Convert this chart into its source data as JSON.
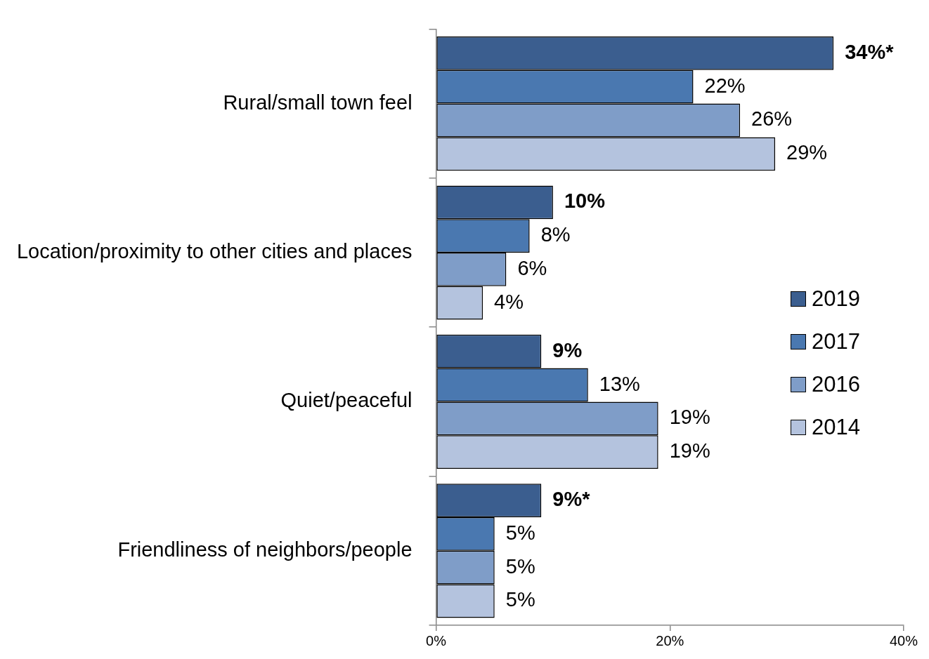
{
  "chart_data": {
    "type": "bar",
    "orientation": "horizontal",
    "categories": [
      "Rural/small town feel",
      "Location/proximity to other cities and places",
      "Quiet/peaceful",
      "Friendliness of neighbors/people"
    ],
    "series": [
      {
        "name": "2019",
        "color": "#3b5e8f",
        "values": [
          34,
          10,
          9,
          9
        ],
        "value_labels": [
          "34%*",
          "10%",
          "9%",
          "9%*"
        ]
      },
      {
        "name": "2017",
        "color": "#4a78b0",
        "values": [
          22,
          8,
          13,
          5
        ],
        "value_labels": [
          "22%",
          "8%",
          "13%",
          "5%"
        ]
      },
      {
        "name": "2016",
        "color": "#7f9dc8",
        "values": [
          26,
          6,
          19,
          5
        ],
        "value_labels": [
          "26%",
          "6%",
          "19%",
          "5%"
        ]
      },
      {
        "name": "2014",
        "color": "#b4c3de",
        "values": [
          29,
          4,
          19,
          5
        ],
        "value_labels": [
          "29%",
          "4%",
          "19%",
          "5%"
        ]
      }
    ],
    "xlim": [
      0,
      40
    ],
    "xticks": [
      {
        "value": 0,
        "label": "0%"
      },
      {
        "value": 20,
        "label": "20%"
      },
      {
        "value": 40,
        "label": "40%"
      }
    ],
    "grid": false,
    "legend": "right"
  }
}
